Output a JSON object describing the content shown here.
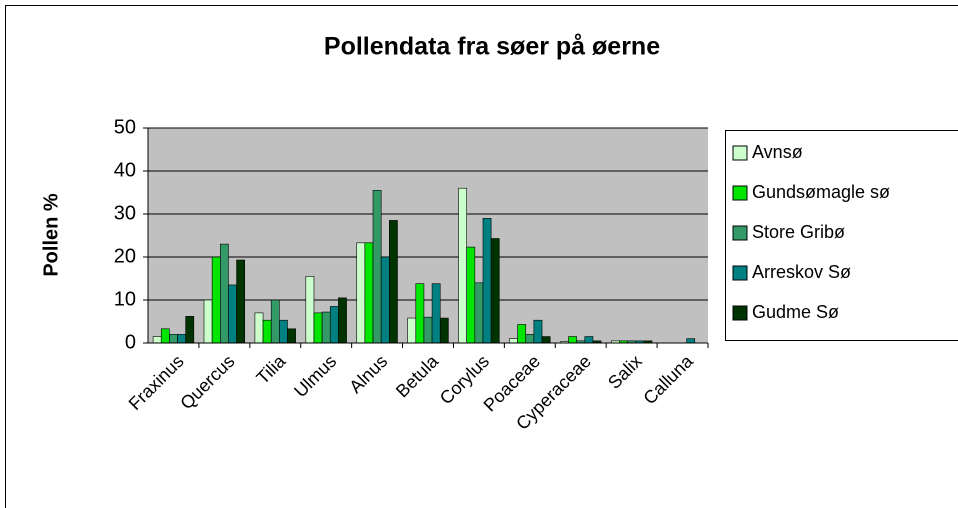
{
  "chart_data": {
    "type": "bar",
    "title": "Pollendata fra søer på øerne",
    "y_label": "Pollen %",
    "categories": [
      "Fraxinus",
      "Quercus",
      "Tilia",
      "Ulmus",
      "Alnus",
      "Betula",
      "Corylus",
      "Poaceae",
      "Cyperaceae",
      "Salix",
      "Calluna"
    ],
    "series": [
      {
        "name": "Avnsø",
        "color": "#ccffcc",
        "values": [
          1.5,
          10,
          7,
          15.5,
          23.3,
          5.8,
          36,
          1,
          0.3,
          0.5,
          0
        ]
      },
      {
        "name": "Gundsømagle sø",
        "color": "#00e600",
        "values": [
          3.3,
          20,
          5.3,
          7,
          23.3,
          13.8,
          22.3,
          4.3,
          1.5,
          0.5,
          0
        ]
      },
      {
        "name": "Store Gribø",
        "color": "#339966",
        "values": [
          2,
          23,
          10,
          7.2,
          35.5,
          6,
          14,
          2,
          0.5,
          0.5,
          0
        ]
      },
      {
        "name": "Arreskov Sø",
        "color": "#008080",
        "values": [
          2,
          13.5,
          5.3,
          8.5,
          20,
          13.8,
          29,
          5.3,
          1.5,
          0.5,
          1
        ]
      },
      {
        "name": "Gudme Sø",
        "color": "#003300",
        "values": [
          6.2,
          19.3,
          3.3,
          10.5,
          28.5,
          5.8,
          24.3,
          1.5,
          0.5,
          0.5,
          0
        ]
      }
    ],
    "ylim": [
      0,
      50
    ],
    "yticks": [
      0,
      10,
      20,
      30,
      40,
      50
    ],
    "grid": true,
    "legend": "right"
  }
}
